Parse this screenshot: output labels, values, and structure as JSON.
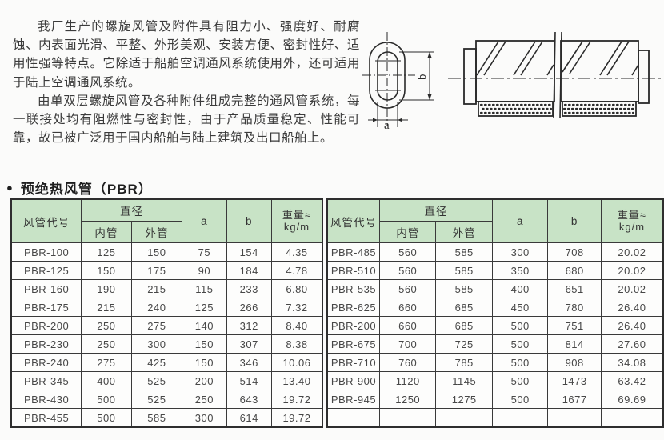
{
  "page": {
    "intro_paragraph_1": "我厂生产的螺旋风管及附件具有阻力小、强度好、耐腐蚀、内表面光滑、平整、外形美观、安装方便、密封性好、适用性强等特点。它除适于船舶空调通风系统使用外，还可适用于陆上空调通风系统。",
    "intro_paragraph_2": "由单双层螺旋风管及各种附件组成完整的通风管系统，每一联接处均有阻燃性与密封性，由于产品质量稳定、性能可靠，故已被广泛用于国内船舶与陆上建筑及出口船舶上。",
    "section_bullet": "●",
    "section_title": "预绝热风管（PBR）"
  },
  "diagram": {
    "dim_a_label": "a",
    "dim_b_label": "b"
  },
  "table": {
    "header_bg": "#c8e3c6",
    "headers": {
      "code": "风管代号",
      "diameter": "直径",
      "inner": "内管",
      "outer": "外管",
      "a": "a",
      "b": "b",
      "weight_line1": "重量≈",
      "weight_line2": "kg/m"
    },
    "left_rows": [
      [
        "PBR-100",
        "125",
        "150",
        "75",
        "154",
        "4.35"
      ],
      [
        "PBR-125",
        "150",
        "175",
        "90",
        "184",
        "4.78"
      ],
      [
        "PBR-160",
        "190",
        "215",
        "115",
        "233",
        "6.80"
      ],
      [
        "PBR-175",
        "215",
        "240",
        "125",
        "266",
        "7.32"
      ],
      [
        "PBR-200",
        "250",
        "275",
        "140",
        "312",
        "8.40"
      ],
      [
        "PBR-230",
        "250",
        "300",
        "150",
        "307",
        "8.38"
      ],
      [
        "PBR-240",
        "275",
        "425",
        "150",
        "346",
        "10.06"
      ],
      [
        "PBR-345",
        "400",
        "525",
        "200",
        "514",
        "13.40"
      ],
      [
        "PBR-430",
        "500",
        "525",
        "250",
        "643",
        "19.72"
      ],
      [
        "PBR-455",
        "500",
        "585",
        "300",
        "614",
        "19.72"
      ]
    ],
    "right_rows": [
      [
        "PBR-485",
        "560",
        "585",
        "300",
        "708",
        "20.02"
      ],
      [
        "PBR-510",
        "560",
        "585",
        "350",
        "680",
        "20.02"
      ],
      [
        "PBR-535",
        "560",
        "585",
        "400",
        "651",
        "20.02"
      ],
      [
        "PBR-625",
        "660",
        "685",
        "450",
        "780",
        "26.40"
      ],
      [
        "PBR-200",
        "660",
        "685",
        "500",
        "751",
        "26.40"
      ],
      [
        "PBR-675",
        "700",
        "725",
        "500",
        "814",
        "27.60"
      ],
      [
        "PBR-710",
        "760",
        "785",
        "500",
        "908",
        "34.08"
      ],
      [
        "PBR-900",
        "1120",
        "1145",
        "500",
        "1473",
        "63.42"
      ],
      [
        "PBR-945",
        "1250",
        "1275",
        "500",
        "1677",
        "69.69"
      ],
      [
        "",
        "",
        "",
        "",
        "",
        ""
      ]
    ]
  }
}
